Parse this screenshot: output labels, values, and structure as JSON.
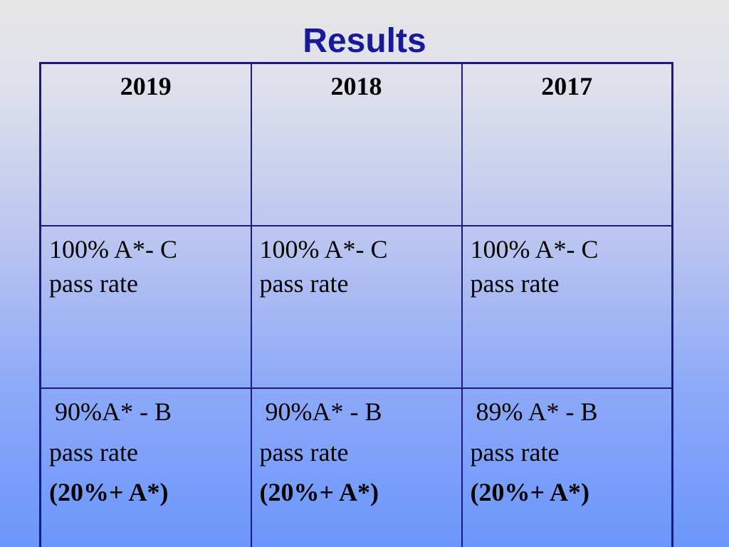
{
  "slide": {
    "title": "Results"
  },
  "table": {
    "years": [
      "2019",
      "2018",
      "2017"
    ],
    "pass_ac": [
      {
        "line1": "100% A*- C",
        "line2": "pass rate"
      },
      {
        "line1": "100% A*- C",
        "line2": "pass rate"
      },
      {
        "line1": "100% A*- C",
        "line2": "pass rate"
      }
    ],
    "pass_ab": [
      {
        "line1": "90%A* - B",
        "line2": "pass rate",
        "line3": "(20%+ A*)"
      },
      {
        "line1": "90%A* - B",
        "line2": "pass rate",
        "line3": "(20%+ A*)"
      },
      {
        "line1": "89% A* - B",
        "line2": "pass rate",
        "line3": "(20%+ A*)"
      }
    ]
  },
  "colors": {
    "title": "#1a1a99",
    "border": "#1a1a80",
    "background_top": "#e6e6e6",
    "background_bottom": "#6b96fb"
  }
}
